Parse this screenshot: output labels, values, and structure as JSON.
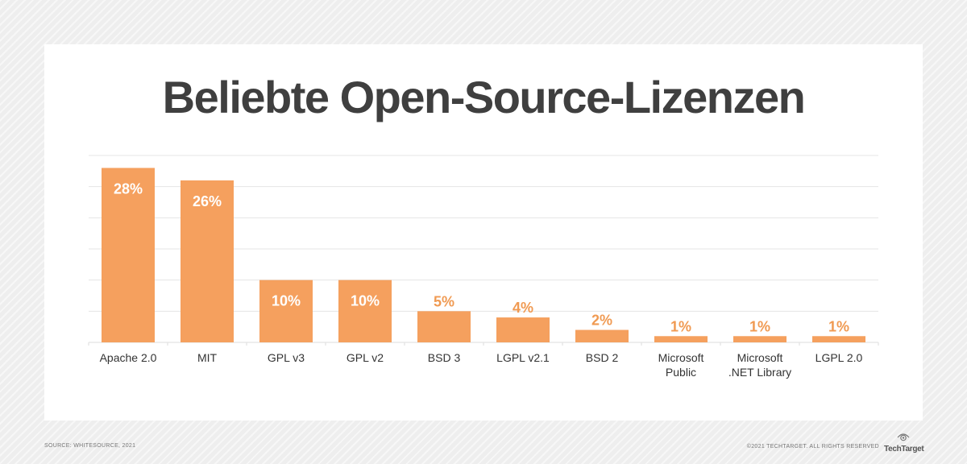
{
  "chart_data": {
    "type": "bar",
    "title": "Beliebte Open-Source-Lizenzen",
    "categories": [
      [
        "Apache 2.0"
      ],
      [
        "MIT"
      ],
      [
        "GPL v3"
      ],
      [
        "GPL v2"
      ],
      [
        "BSD 3"
      ],
      [
        "LGPL v2.1"
      ],
      [
        "BSD 2"
      ],
      [
        "Microsoft",
        "Public"
      ],
      [
        "Microsoft",
        ".NET Library"
      ],
      [
        "LGPL 2.0"
      ]
    ],
    "values": [
      28,
      26,
      10,
      10,
      5,
      4,
      2,
      1,
      1,
      1
    ],
    "value_labels": [
      "28%",
      "26%",
      "10%",
      "10%",
      "5%",
      "4%",
      "2%",
      "1%",
      "1%",
      "1%"
    ],
    "ylim": [
      0,
      30
    ],
    "grid_step": 5,
    "xlabel": "",
    "ylabel": "",
    "grid": true,
    "colors": {
      "bar": "#f5a05e",
      "label_inside": "#ffffff",
      "label_outside": "#f09a52",
      "grid": "#e4e4e4",
      "axis_text": "#333333"
    }
  },
  "footer": {
    "source": "SOURCE: WHITESOURCE, 2021",
    "copyright": "©2021 TECHTARGET. ALL RIGHTS RESERVED",
    "brand": "TechTarget",
    "brand_icon": "eye-logo-icon"
  }
}
